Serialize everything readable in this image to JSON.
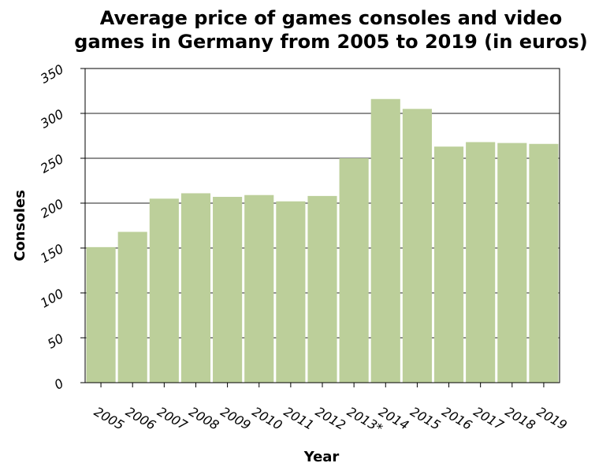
{
  "chart_data": {
    "type": "bar",
    "title_lines": [
      "Average price of games consoles and video",
      "games in Germany from 2005 to 2019 (in euros)"
    ],
    "xlabel": "Year",
    "ylabel": "Consoles",
    "categories": [
      "2005",
      "2006",
      "2007",
      "2008",
      "2009",
      "2010",
      "2011",
      "2012",
      "2013*",
      "2014",
      "2015",
      "2016",
      "2017",
      "2018",
      "2019"
    ],
    "values": [
      151,
      168,
      205,
      211,
      207,
      209,
      202,
      208,
      250,
      316,
      305,
      263,
      268,
      267,
      266
    ],
    "ylim": [
      0,
      350
    ],
    "yticks": [
      0,
      50,
      100,
      150,
      200,
      250,
      300,
      350
    ],
    "grid": true,
    "bar_color": "#bccf9a"
  }
}
